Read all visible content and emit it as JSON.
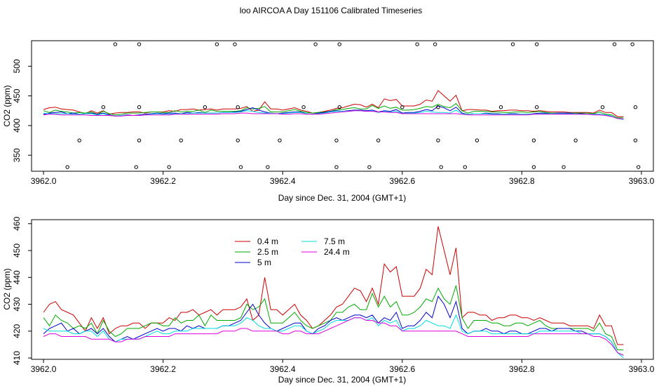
{
  "title": "loo AIRCOA A  Day 151106  Calibrated Timeseries",
  "colors": {
    "0.4 m": "#cc0000",
    "2.5 m": "#00aa00",
    "5 m": "#0000cc",
    "7.5 m": "#00dddd",
    "24.4 m": "#dd00dd"
  },
  "chart_data": [
    {
      "type": "line",
      "xlabel": "Day since Dec. 31, 2004 (GMT+1)",
      "ylabel": "CO2 (ppm)",
      "xlim": [
        3961.98,
        3963.02
      ],
      "ylim": [
        323,
        543
      ],
      "xticks": [
        3962.0,
        3962.2,
        3962.4,
        3962.6,
        3962.8,
        3963.0
      ],
      "xtick_labels": [
        "3962.0",
        "3962.2",
        "3962.4",
        "3962.6",
        "3962.8",
        "3963.0"
      ],
      "yticks": [
        350,
        400,
        450,
        500
      ],
      "ytick_labels": [
        "350",
        "400",
        "450",
        "500"
      ],
      "grid": false,
      "legend": "none",
      "series_ref": "shared",
      "points": [
        {
          "x": 3962.04,
          "y": 330
        },
        {
          "x": 3962.06,
          "y": 375
        },
        {
          "x": 3962.1,
          "y": 431
        },
        {
          "x": 3962.12,
          "y": 537
        },
        {
          "x": 3962.155,
          "y": 330
        },
        {
          "x": 3962.16,
          "y": 375
        },
        {
          "x": 3962.16,
          "y": 431
        },
        {
          "x": 3962.16,
          "y": 537
        },
        {
          "x": 3962.21,
          "y": 330
        },
        {
          "x": 3962.23,
          "y": 375
        },
        {
          "x": 3962.27,
          "y": 431
        },
        {
          "x": 3962.29,
          "y": 537
        },
        {
          "x": 3962.32,
          "y": 537
        },
        {
          "x": 3962.325,
          "y": 431
        },
        {
          "x": 3962.325,
          "y": 375
        },
        {
          "x": 3962.33,
          "y": 330
        },
        {
          "x": 3962.375,
          "y": 330
        },
        {
          "x": 3962.395,
          "y": 375
        },
        {
          "x": 3962.435,
          "y": 431
        },
        {
          "x": 3962.455,
          "y": 537
        },
        {
          "x": 3962.49,
          "y": 330
        },
        {
          "x": 3962.49,
          "y": 375
        },
        {
          "x": 3962.495,
          "y": 431
        },
        {
          "x": 3962.495,
          "y": 537
        },
        {
          "x": 3962.545,
          "y": 330
        },
        {
          "x": 3962.56,
          "y": 375
        },
        {
          "x": 3962.6,
          "y": 431
        },
        {
          "x": 3962.625,
          "y": 537
        },
        {
          "x": 3962.655,
          "y": 537
        },
        {
          "x": 3962.66,
          "y": 431
        },
        {
          "x": 3962.66,
          "y": 375
        },
        {
          "x": 3962.665,
          "y": 330
        },
        {
          "x": 3962.705,
          "y": 330
        },
        {
          "x": 3962.725,
          "y": 375
        },
        {
          "x": 3962.765,
          "y": 431
        },
        {
          "x": 3962.785,
          "y": 537
        },
        {
          "x": 3962.82,
          "y": 330
        },
        {
          "x": 3962.82,
          "y": 375
        },
        {
          "x": 3962.825,
          "y": 431
        },
        {
          "x": 3962.825,
          "y": 537
        },
        {
          "x": 3962.87,
          "y": 330
        },
        {
          "x": 3962.89,
          "y": 375
        },
        {
          "x": 3962.935,
          "y": 431
        },
        {
          "x": 3962.955,
          "y": 537
        },
        {
          "x": 3962.985,
          "y": 537
        },
        {
          "x": 3962.99,
          "y": 431
        },
        {
          "x": 3962.99,
          "y": 375
        },
        {
          "x": 3962.995,
          "y": 330
        }
      ]
    },
    {
      "type": "line",
      "xlabel": "Day since Dec. 31, 2004 (GMT+1)",
      "ylabel": "CO2 (ppm)",
      "xlim": [
        3961.98,
        3963.02
      ],
      "ylim": [
        409.5,
        461.5
      ],
      "xticks": [
        3962.0,
        3962.2,
        3962.4,
        3962.6,
        3962.8,
        3963.0
      ],
      "xtick_labels": [
        "3962.0",
        "3962.2",
        "3962.4",
        "3962.6",
        "3962.8",
        "3963.0"
      ],
      "yticks": [
        410,
        420,
        430,
        440,
        450,
        460
      ],
      "ytick_labels": [
        "410",
        "420",
        "430",
        "440",
        "450",
        "460"
      ],
      "grid": false,
      "legend": "top-left",
      "legend_entries": [
        "0.4 m",
        "2.5 m",
        "5 m",
        "7.5 m",
        "24.4 m"
      ],
      "x_start": 3962.0,
      "x_step": 0.01,
      "series": [
        {
          "name": "0.4 m",
          "color": "#cc0000",
          "values": [
            427,
            430,
            431,
            428,
            427,
            426,
            423,
            420,
            425,
            421,
            425,
            419,
            421,
            422,
            422,
            423,
            423,
            421,
            423,
            423,
            423,
            425,
            424,
            427,
            427,
            428,
            426,
            427,
            428,
            426,
            428,
            428,
            428,
            429,
            432,
            424,
            426,
            440,
            428,
            428,
            426,
            428,
            430,
            426,
            424,
            421,
            422,
            424,
            426,
            429,
            430,
            433,
            436,
            435,
            431,
            436,
            430,
            445,
            442,
            444,
            433,
            433,
            433,
            436,
            443,
            441,
            459,
            450,
            441,
            451,
            425,
            427,
            427,
            426,
            426,
            424,
            425,
            425,
            426,
            426,
            425,
            425,
            424,
            425,
            424,
            423,
            423,
            423,
            422,
            422,
            422,
            422,
            421,
            426,
            422,
            422,
            415,
            415
          ]
        },
        {
          "name": "2.5 m",
          "color": "#00aa00",
          "values": [
            425,
            422,
            426,
            424,
            423,
            421,
            422,
            421,
            423,
            419,
            424,
            420,
            418,
            419,
            421,
            421,
            421,
            422,
            423,
            423,
            422,
            422,
            425,
            423,
            424,
            424,
            426,
            422,
            426,
            424,
            424,
            424,
            424,
            425,
            430,
            428,
            429,
            432,
            423,
            423,
            423,
            425,
            427,
            424,
            422,
            421,
            422,
            423,
            424,
            427,
            427,
            429,
            430,
            428,
            428,
            434,
            429,
            433,
            429,
            431,
            426,
            426,
            427,
            429,
            432,
            431,
            436,
            432,
            430,
            437,
            425,
            421,
            424,
            424,
            424,
            423,
            423,
            422,
            422,
            423,
            423,
            422,
            423,
            424,
            422,
            421,
            421,
            421,
            421,
            421,
            421,
            421,
            420,
            423,
            419,
            418,
            413,
            413
          ]
        },
        {
          "name": "5 m",
          "color": "#0000cc",
          "values": [
            419,
            421,
            422,
            423,
            420,
            421,
            419,
            420,
            421,
            419,
            421,
            418,
            416,
            417,
            418,
            417,
            418,
            419,
            420,
            421,
            420,
            421,
            421,
            420,
            422,
            421,
            422,
            421,
            421,
            421,
            422,
            422,
            423,
            424,
            427,
            430,
            426,
            423,
            421,
            420,
            421,
            422,
            423,
            423,
            420,
            419,
            421,
            422,
            424,
            425,
            424,
            425,
            426,
            426,
            425,
            426,
            423,
            425,
            424,
            427,
            421,
            422,
            422,
            424,
            427,
            425,
            433,
            430,
            425,
            431,
            421,
            419,
            420,
            420,
            421,
            420,
            420,
            419,
            420,
            420,
            419,
            419,
            420,
            421,
            421,
            420,
            421,
            421,
            421,
            420,
            420,
            419,
            419,
            419,
            418,
            416,
            412,
            411
          ]
        },
        {
          "name": "7.5 m",
          "color": "#00dddd",
          "values": [
            421,
            420,
            420,
            420,
            420,
            419,
            419,
            420,
            420,
            418,
            420,
            417,
            416,
            417,
            417,
            417,
            417,
            418,
            419,
            420,
            419,
            419,
            420,
            420,
            420,
            421,
            421,
            421,
            421,
            421,
            422,
            422,
            422,
            423,
            425,
            424,
            422,
            421,
            421,
            420,
            420,
            421,
            422,
            422,
            420,
            419,
            420,
            421,
            423,
            424,
            424,
            424,
            425,
            425,
            424,
            425,
            422,
            424,
            423,
            424,
            420,
            421,
            421,
            422,
            424,
            423,
            422,
            422,
            421,
            426,
            420,
            419,
            420,
            420,
            420,
            419,
            419,
            419,
            419,
            419,
            419,
            419,
            419,
            420,
            420,
            420,
            420,
            420,
            420,
            420,
            419,
            419,
            419,
            419,
            418,
            416,
            412,
            410
          ]
        },
        {
          "name": "24.4 m",
          "color": "#dd00dd",
          "values": [
            418,
            419,
            419,
            418,
            418,
            418,
            418,
            418,
            417,
            417,
            417,
            417,
            416,
            416,
            417,
            417,
            417,
            418,
            418,
            418,
            418,
            418,
            419,
            419,
            419,
            419,
            419,
            419,
            419,
            419,
            420,
            420,
            420,
            421,
            421,
            420,
            420,
            420,
            420,
            420,
            419,
            419,
            420,
            420,
            419,
            419,
            419,
            420,
            421,
            422,
            423,
            424,
            425,
            425,
            424,
            424,
            423,
            423,
            422,
            422,
            420,
            420,
            420,
            420,
            420,
            420,
            420,
            420,
            420,
            420,
            419,
            418,
            418,
            418,
            418,
            418,
            418,
            418,
            418,
            418,
            418,
            418,
            419,
            419,
            419,
            419,
            419,
            419,
            419,
            419,
            419,
            419,
            418,
            418,
            417,
            415,
            412,
            411
          ]
        }
      ]
    }
  ]
}
